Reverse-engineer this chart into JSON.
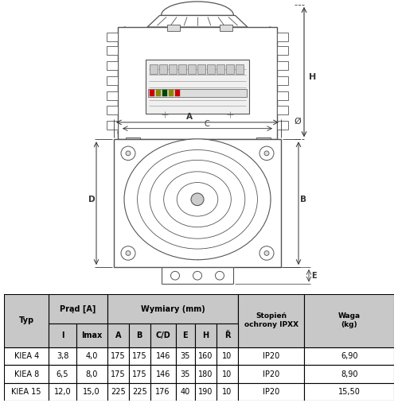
{
  "table_data": [
    [
      "KIEA 4",
      "3,8",
      "4,0",
      "175",
      "175",
      "146",
      "35",
      "160",
      "10",
      "IP20",
      "6,90"
    ],
    [
      "KIEA 8",
      "6,5",
      "8,0",
      "175",
      "175",
      "146",
      "35",
      "180",
      "10",
      "IP20",
      "8,90"
    ],
    [
      "KIEA 15",
      "12,0",
      "15,0",
      "225",
      "225",
      "176",
      "40",
      "190",
      "10",
      "IP20",
      "15,50"
    ]
  ],
  "header_bg": "#c8c8c8",
  "table_font_size": 7.0,
  "diagram_color": "#555555",
  "dim_line_color": "#333333",
  "lw_main": 0.9,
  "lw_thin": 0.6
}
